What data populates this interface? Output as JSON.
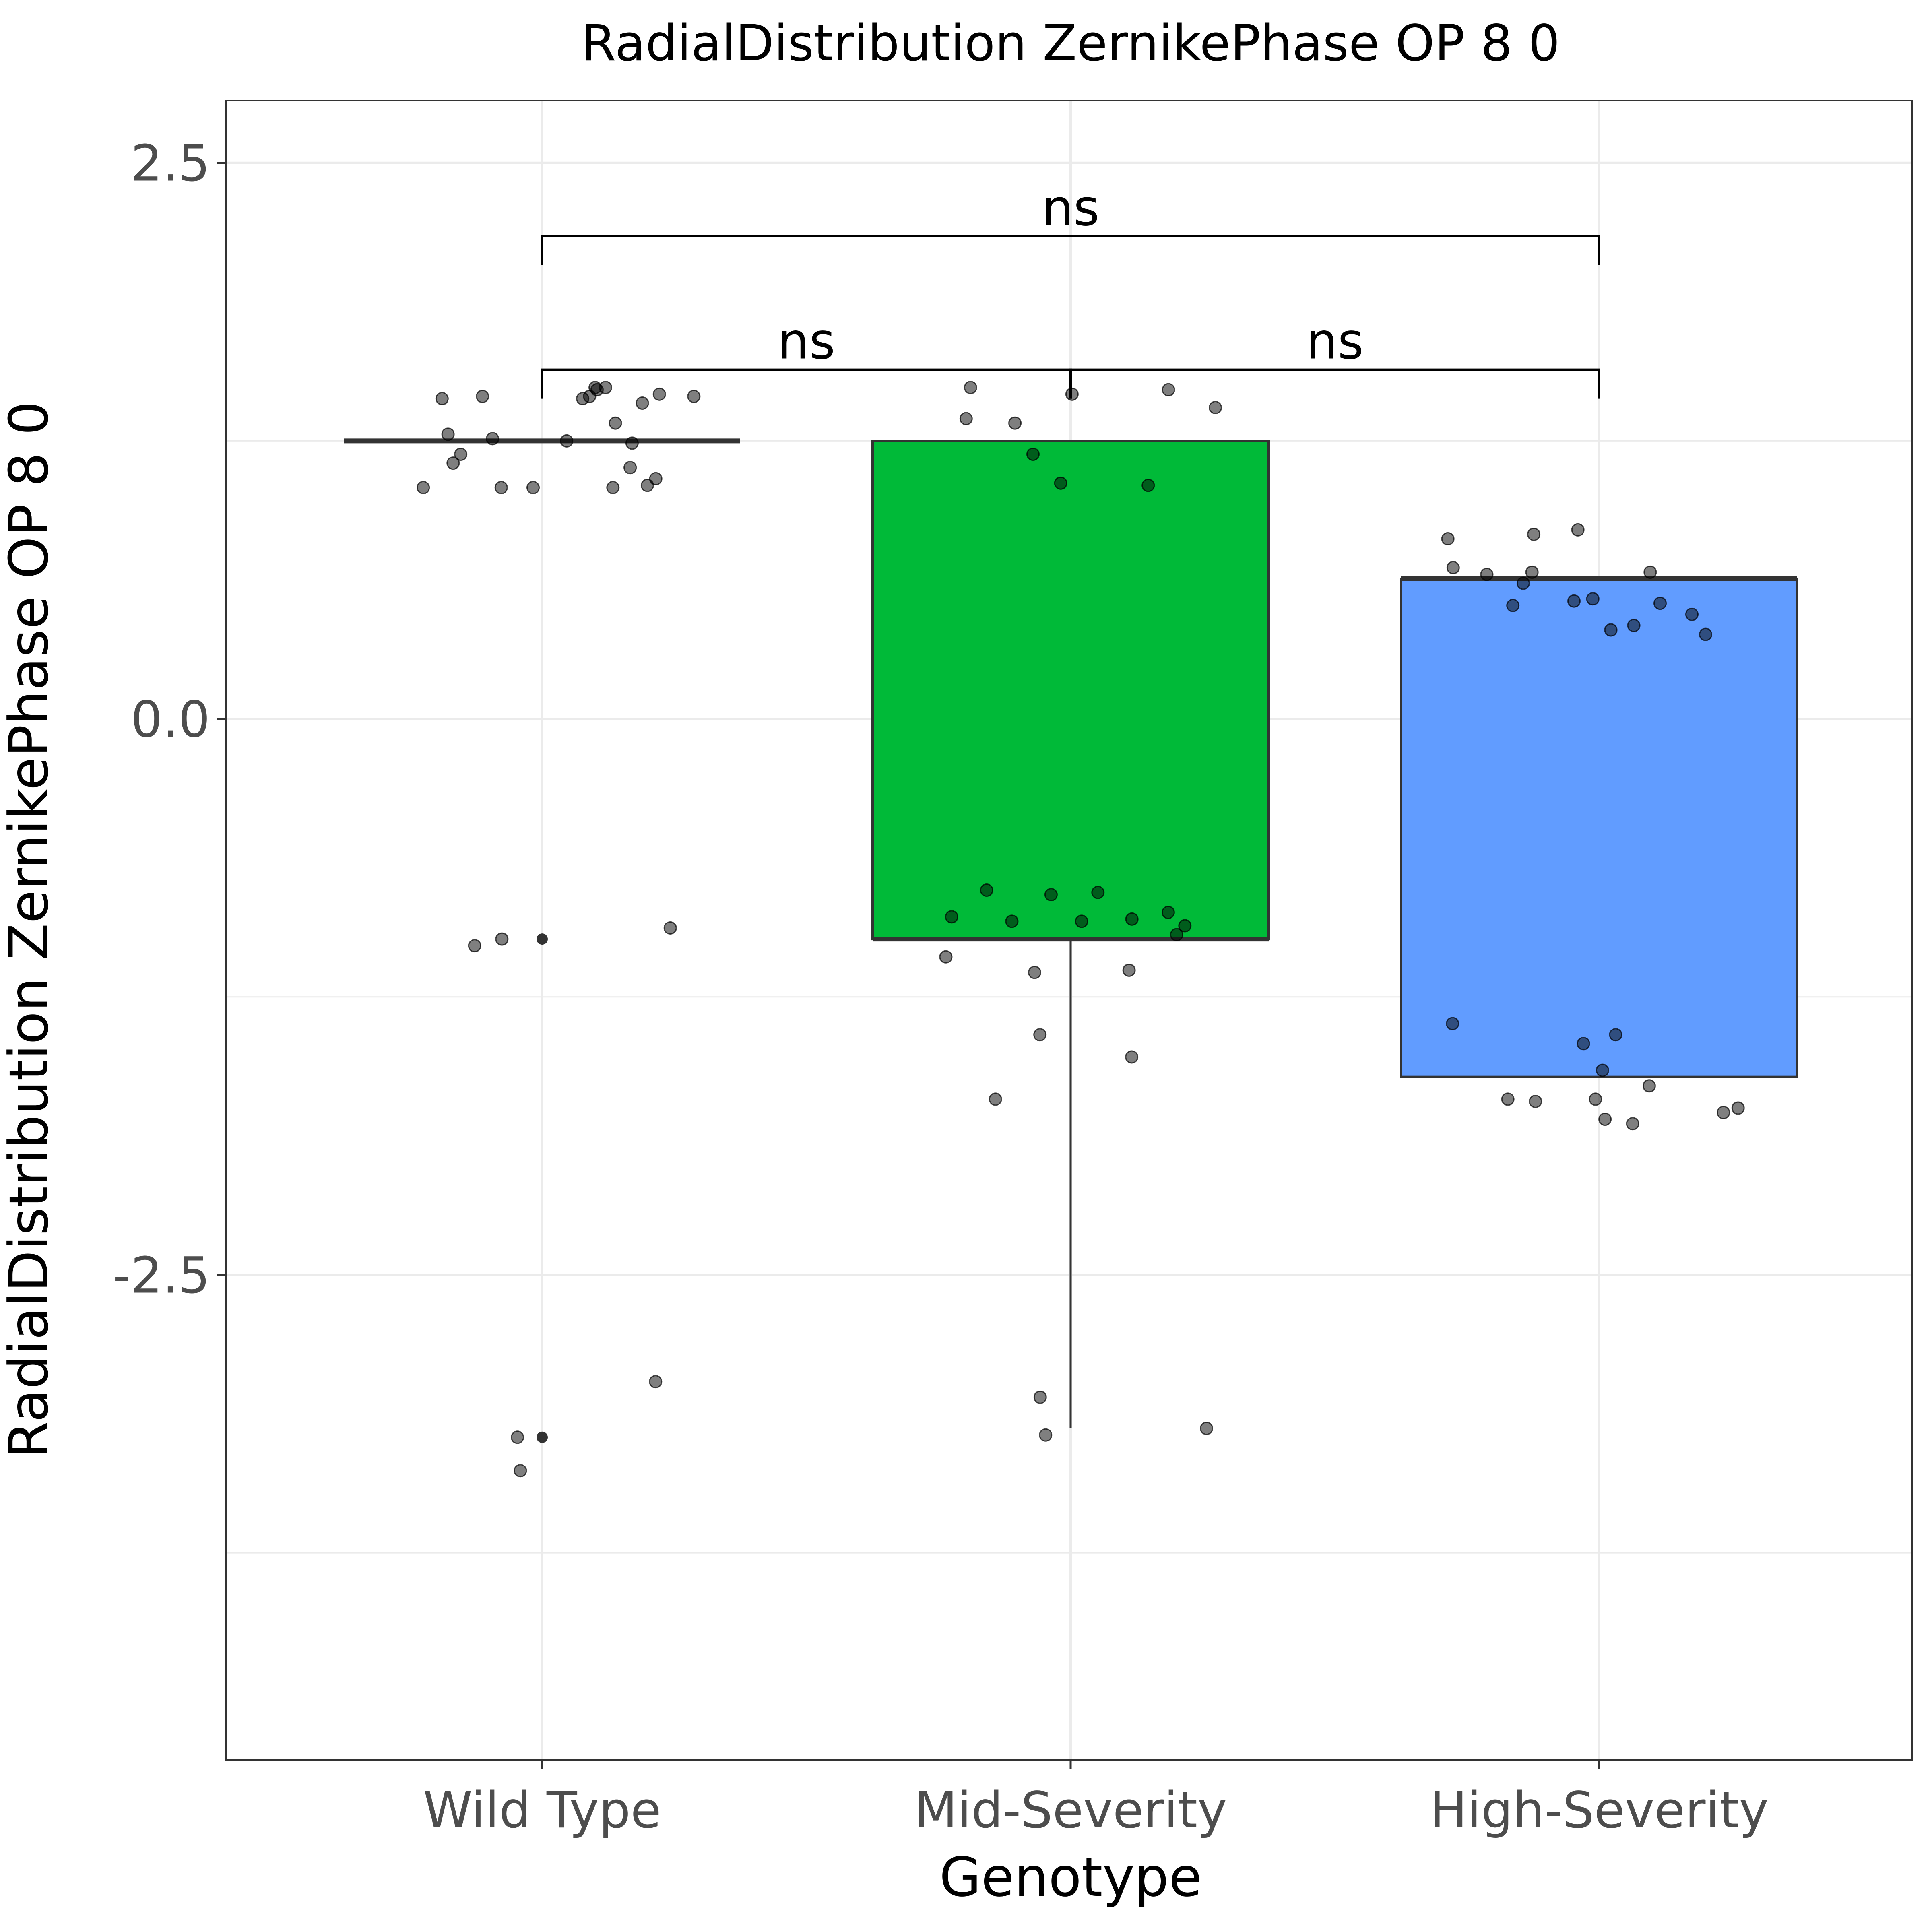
{
  "chart_data": {
    "type": "box",
    "title": "RadialDistribution ZernikePhase OP 8 0",
    "xlabel": "Genotype",
    "ylabel": "RadialDistribution ZernikePhase OP 8 0",
    "ylim": [
      -4.68,
      2.78
    ],
    "yticks": [
      2.5,
      0.0,
      -2.5
    ],
    "ytick_labels": [
      "2.5",
      "0.0",
      "-2.5"
    ],
    "grid": true,
    "categories": [
      "Wild Type",
      "Mid-Severity",
      "High-Severity"
    ],
    "colors": {
      "Wild Type": "#f8766d",
      "Mid-Severity": "#00ba38",
      "High-Severity": "#619cff"
    },
    "boxes": [
      {
        "name": "Wild Type",
        "q1": 1.25,
        "median": 1.25,
        "q3": 1.25,
        "whisker_low": 1.25,
        "whisker_high": 1.25
      },
      {
        "name": "Mid-Severity",
        "q1": -0.99,
        "median": -0.99,
        "q3": 1.25,
        "whisker_low": -3.19,
        "whisker_high": 1.25
      },
      {
        "name": "High-Severity",
        "q1": -1.61,
        "median": 0.63,
        "q3": 0.63,
        "whisker_low": -1.61,
        "whisker_high": 0.63
      }
    ],
    "outliers": [
      {
        "group": "Wild Type",
        "values": [
          -0.99,
          -3.23
        ]
      }
    ],
    "points": [
      {
        "group": "Wild Type",
        "values": [
          1.45,
          1.45,
          1.44,
          1.45,
          1.48,
          1.49,
          1.44,
          1.46,
          1.49,
          1.42,
          1.33,
          1.26,
          1.24,
          1.28,
          1.25,
          1.19,
          1.15,
          1.13,
          1.08,
          1.05,
          1.04,
          1.04,
          1.04,
          1.04,
          -1.02,
          -0.99,
          -0.94,
          -2.98,
          -3.23,
          -3.38
        ]
      },
      {
        "group": "Mid-Severity",
        "values": [
          1.48,
          1.49,
          1.35,
          1.33,
          1.19,
          1.46,
          1.4,
          1.06,
          1.05,
          -0.77,
          -0.79,
          -0.93,
          -0.87,
          -0.91,
          -0.91,
          -0.97,
          -0.9,
          -0.89,
          -0.78,
          -1.07,
          -1.13,
          -1.42,
          -1.52,
          -1.71,
          -1.14,
          -3.05,
          -3.22,
          -3.19
        ]
      },
      {
        "group": "High-Severity",
        "values": [
          0.85,
          0.68,
          0.61,
          0.65,
          0.66,
          0.81,
          0.83,
          0.66,
          0.53,
          0.51,
          0.47,
          0.54,
          0.4,
          0.38,
          0.42,
          0.52,
          -1.37,
          -1.42,
          -1.46,
          -1.58,
          -1.65,
          -1.72,
          -1.71,
          -1.75,
          -1.71,
          -1.8,
          -1.77,
          -1.82
        ]
      }
    ],
    "comparisons": [
      {
        "from": "Wild Type",
        "to": "Mid-Severity",
        "label": "ns",
        "y": 1.57
      },
      {
        "from": "Mid-Severity",
        "to": "High-Severity",
        "label": "ns",
        "y": 1.57
      },
      {
        "from": "Wild Type",
        "to": "High-Severity",
        "label": "ns",
        "y": 2.17
      }
    ]
  }
}
